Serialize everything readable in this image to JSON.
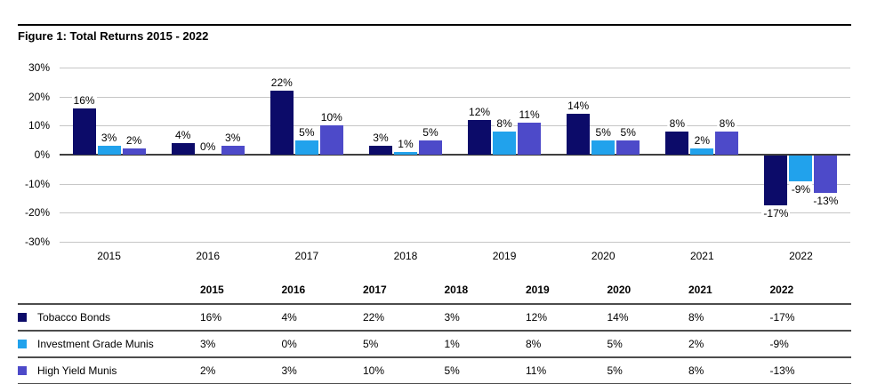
{
  "figure": {
    "title": "Figure 1: Total Returns 2015 - 2022"
  },
  "chart_data": {
    "type": "bar",
    "title": "Figure 1: Total Returns 2015 - 2022",
    "categories": [
      "2015",
      "2016",
      "2017",
      "2018",
      "2019",
      "2020",
      "2021",
      "2022"
    ],
    "series": [
      {
        "name": "Tobacco Bonds",
        "color": "#0c0b69",
        "values": [
          16,
          4,
          22,
          3,
          12,
          14,
          8,
          -17
        ]
      },
      {
        "name": "Investment Grade Munis",
        "color": "#21a2ec",
        "values": [
          3,
          0,
          5,
          1,
          8,
          5,
          2,
          -9
        ]
      },
      {
        "name": "High Yield Munis",
        "color": "#4d4ac9",
        "values": [
          2,
          3,
          10,
          5,
          11,
          5,
          8,
          -13
        ]
      }
    ],
    "y_ticks": [
      30,
      20,
      10,
      0,
      -10,
      -20,
      -30
    ],
    "y_tick_labels": [
      "30%",
      "20%",
      "10%",
      "0%",
      "-10%",
      "-20%",
      "-30%"
    ],
    "ylim": [
      -30,
      30
    ],
    "grid": true,
    "value_labels": true,
    "value_label_format": "percent",
    "legend_position": "table-below"
  },
  "table": {
    "corner_label": "",
    "value_suffix": "%"
  }
}
